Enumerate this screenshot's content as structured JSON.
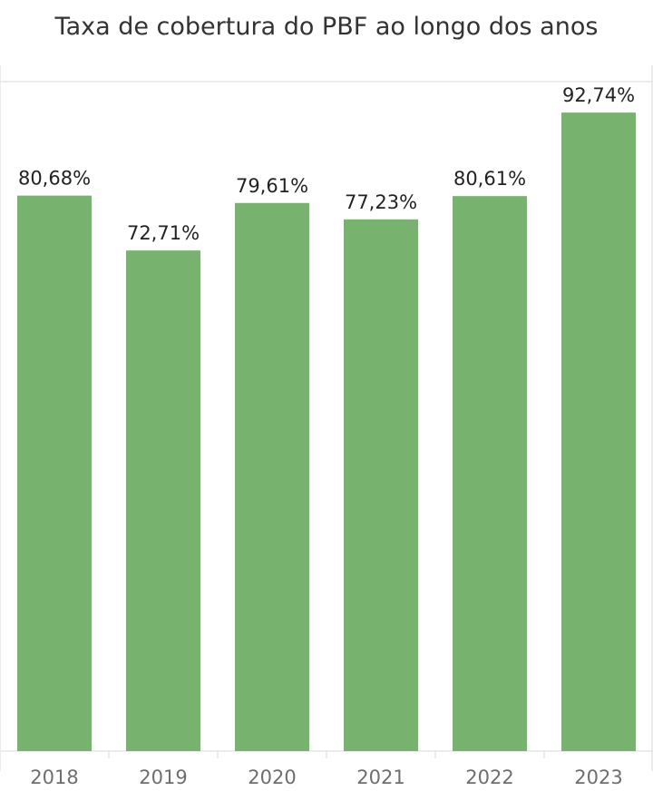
{
  "chart_data": {
    "type": "bar",
    "title": "Taxa de cobertura do PBF ao longo dos anos",
    "categories": [
      "2018",
      "2019",
      "2020",
      "2021",
      "2022",
      "2023"
    ],
    "values": [
      80.68,
      72.71,
      79.61,
      77.23,
      80.61,
      92.74
    ],
    "value_labels": [
      "80,68%",
      "72,71%",
      "79,61%",
      "77,23%",
      "80,61%",
      "92,74%"
    ],
    "ylim": [
      0,
      100
    ],
    "grid": false,
    "bar_color": "#78b26f",
    "axis_color": "#e6e6e6"
  }
}
